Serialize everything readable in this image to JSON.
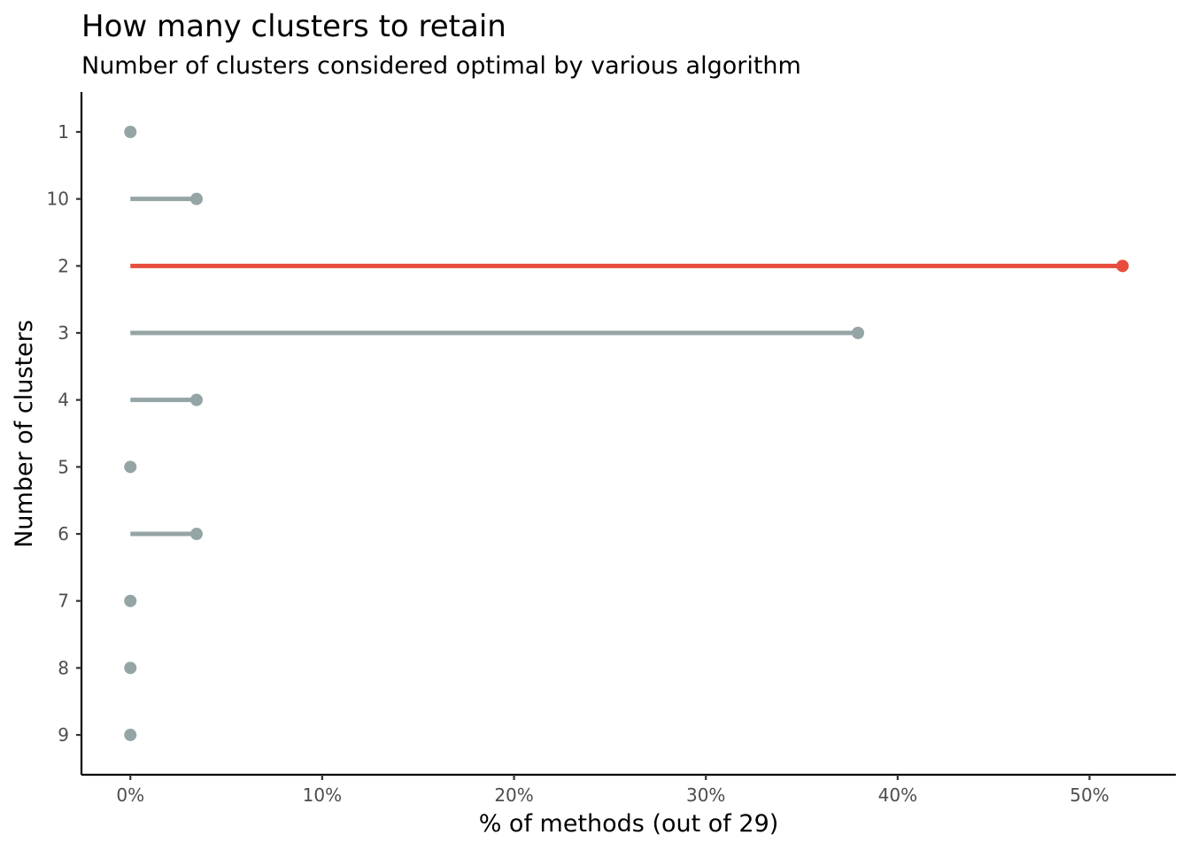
{
  "chart_data": {
    "type": "lollipop",
    "title": "How many clusters to retain",
    "subtitle": "Number of clusters considered optimal by various algorithm",
    "xlabel": "% of methods (out of 29)",
    "ylabel": "Number of clusters",
    "xlim": [
      -2.55,
      54.5
    ],
    "x_ticks": [
      0,
      10,
      20,
      30,
      40,
      50
    ],
    "x_tick_labels": [
      "0%",
      "10%",
      "20%",
      "30%",
      "40%",
      "50%"
    ],
    "categories": [
      "1",
      "10",
      "2",
      "3",
      "4",
      "5",
      "6",
      "7",
      "8",
      "9"
    ],
    "values": [
      0,
      3.45,
      51.72,
      37.93,
      3.45,
      0,
      3.45,
      0,
      0,
      0
    ],
    "highlight_category": "2",
    "colors": {
      "default": "#95a5a6",
      "highlight": "#e74c3c"
    },
    "grid": false,
    "legend": "none"
  }
}
